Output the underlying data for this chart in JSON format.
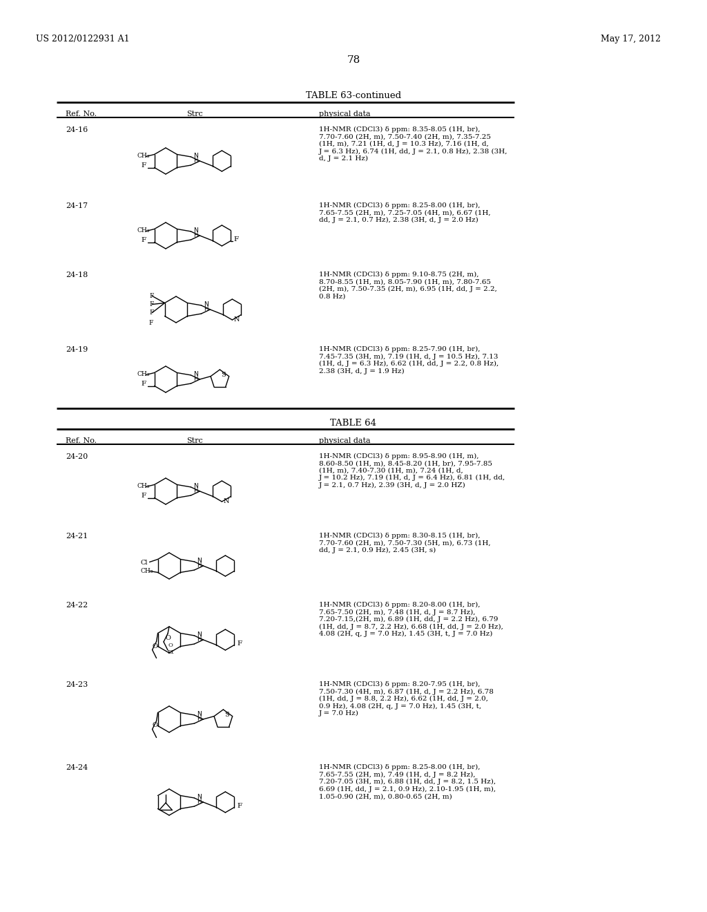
{
  "page_num": "78",
  "patent_left": "US 2012/0122931 A1",
  "patent_right": "May 17, 2012",
  "table63_title": "TABLE 63-continued",
  "table64_title": "TABLE 64",
  "col_headers": [
    "Ref. No.",
    "Strc",
    "physical data"
  ],
  "rows_63": [
    {
      "ref": "24-16",
      "nmr": "1H-NMR (CDCl3) δ ppm: 8.35-8.05 (1H, br),\n7.70-7.60 (2H, m), 7.50-7.40 (2H, m), 7.35-7.25\n(1H, m), 7.21 (1H, d, J = 10.3 Hz), 7.16 (1H, d,\nJ = 6.3 Hz), 6.74 (1H, dd, J = 2.1, 0.8 Hz), 2.38 (3H,\nd, J = 2.1 Hz)"
    },
    {
      "ref": "24-17",
      "nmr": "1H-NMR (CDCl3) δ ppm: 8.25-8.00 (1H, br),\n7.65-7.55 (2H, m), 7.25-7.05 (4H, m), 6.67 (1H,\ndd, J = 2.1, 0.7 Hz), 2.38 (3H, d, J = 2.0 Hz)"
    },
    {
      "ref": "24-18",
      "nmr": "1H-NMR (CDCl3) δ ppm: 9.10-8.75 (2H, m),\n8.70-8.55 (1H, m), 8.05-7.90 (1H, m), 7.80-7.65\n(2H, m), 7.50-7.35 (2H, m), 6.95 (1H, dd, J = 2.2,\n0.8 Hz)"
    },
    {
      "ref": "24-19",
      "nmr": "1H-NMR (CDCl3) δ ppm: 8.25-7.90 (1H, br),\n7.45-7.35 (3H, m), 7.19 (1H, d, J = 10.5 Hz), 7.13\n(1H, d, J = 6.3 Hz), 6.62 (1H, dd, J = 2.2, 0.8 Hz),\n2.38 (3H, d, J = 1.9 Hz)"
    }
  ],
  "rows_64": [
    {
      "ref": "24-20",
      "nmr": "1H-NMR (CDCl3) δ ppm: 8.95-8.90 (1H, m),\n8.60-8.50 (1H, m), 8.45-8.20 (1H, br), 7.95-7.85\n(1H, m), 7.40-7.30 (1H, m), 7.24 (1H, d,\nJ = 10.2 Hz), 7.19 (1H, d, J = 6.4 Hz), 6.81 (1H, dd,\nJ = 2.1, 0.7 Hz), 2.39 (3H, d, J = 2.0 HZ)"
    },
    {
      "ref": "24-21",
      "nmr": "1H-NMR (CDCl3) δ ppm: 8.30-8.15 (1H, br),\n7.70-7.60 (2H, m), 7.50-7.30 (5H, m), 6.73 (1H,\ndd, J = 2.1, 0.9 Hz), 2.45 (3H, s)"
    },
    {
      "ref": "24-22",
      "nmr": "1H-NMR (CDCl3) δ ppm: 8.20-8.00 (1H, br),\n7.65-7.50 (2H, m), 7.48 (1H, d, J = 8.7 Hz),\n7.20-7.15,(2H, m), 6.89 (1H, dd, J = 2.2 Hz), 6.79\n(1H, dd, J = 8.7, 2.2 Hz), 6.68 (1H, dd, J = 2.0 Hz),\n4.08 (2H, q, J = 7.0 Hz), 1.45 (3H, t, J = 7.0 Hz)"
    },
    {
      "ref": "24-23",
      "nmr": "1H-NMR (CDCl3) δ ppm: 8.20-7.95 (1H, br),\n7.50-7.30 (4H, m), 6.87 (1H, d, J = 2.2 Hz), 6.78\n(1H, dd, J = 8.8, 2.2 Hz), 6.62 (1H, dd, J = 2.0,\n0.9 Hz), 4.08 (2H, q, J = 7.0 Hz), 1.45 (3H, t,\nJ = 7.0 Hz)"
    },
    {
      "ref": "24-24",
      "nmr": "1H-NMR (CDCl3) δ ppm: 8.25-8.00 (1H, br),\n7.65-7.55 (2H, m), 7.49 (1H, d, J = 8.2 Hz),\n7.20-7.05 (3H, m), 6.88 (1H, dd, J = 8.2, 1.5 Hz),\n6.69 (1H, dd, J = 2.1, 0.9 Hz), 2.10-1.95 (1H, m),\n1.05-0.90 (2H, m), 0.80-0.65 (2H, m)"
    }
  ],
  "bg_color": "#ffffff",
  "text_color": "#000000",
  "line_color": "#000000"
}
